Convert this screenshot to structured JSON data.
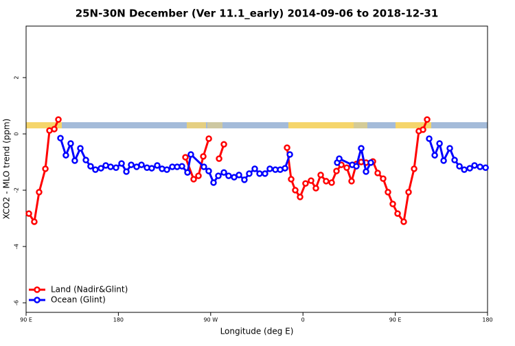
{
  "chart_data": {
    "type": "line",
    "title": "25N-30N December (Ver 11.1_early)   2014-09-06 to 2018-12-31",
    "xlabel": "Longitude (deg E)",
    "ylabel": "XCO2 - MLO trend (ppm)",
    "xlim": [
      90,
      540
    ],
    "ylim": [
      -6.34,
      3.83
    ],
    "xticks": [
      {
        "value": 90,
        "label": "90 E"
      },
      180,
      {
        "value": 270,
        "label": "90 W"
      },
      {
        "value": 360,
        "label": "0"
      },
      {
        "value": 450,
        "label": "90 E"
      },
      {
        "value": 540,
        "label": "180"
      }
    ],
    "yticks": [
      -6,
      -4,
      -2,
      0,
      2
    ],
    "legend": "bottom-left",
    "series": [
      {
        "name": "Land (Nadir&Glint)",
        "color": "#ff0000",
        "x": [
          92.7,
          98.0,
          102.7,
          108.8,
          112.8,
          117.5,
          121.5,
          null,
          245.4,
          253.4,
          258.1,
          262.8,
          268.2,
          null,
          278.2,
          282.9,
          null,
          344.5,
          348.5,
          352.5,
          357.2,
          362.5,
          367.9,
          372.6,
          377.3,
          382.6,
          388.0,
          392.7,
          397.4,
          402.7,
          407.4,
          412.1,
          416.8,
          421.5,
          428.2,
          432.9,
          438.2,
          442.9,
          447.6,
          452.3,
          458.3,
          463.0,
          468.4,
          473.0,
          477.1,
          481.1
        ],
        "values": [
          -2.83,
          -3.12,
          -2.07,
          -1.24,
          0.12,
          0.17,
          0.51,
          null,
          -0.83,
          -1.61,
          -1.49,
          -0.8,
          -0.17,
          null,
          -0.88,
          -0.37,
          null,
          -0.49,
          -1.61,
          -2.0,
          -2.24,
          -1.76,
          -1.66,
          -1.93,
          -1.46,
          -1.68,
          -1.73,
          -1.32,
          -1.1,
          -1.2,
          -1.68,
          -1.07,
          -1.0,
          -1.02,
          -0.98,
          -1.39,
          -1.59,
          -2.07,
          -2.49,
          -2.83,
          -3.12,
          -2.07,
          -1.24,
          0.1,
          0.15,
          0.51
        ]
      },
      {
        "name": "Ocean (Glint)",
        "color": "#0000ff",
        "x": [
          123.5,
          128.8,
          133.5,
          137.5,
          142.9,
          148.3,
          152.9,
          157.6,
          163.0,
          167.7,
          172.4,
          177.7,
          183.1,
          187.8,
          192.5,
          197.8,
          202.5,
          207.9,
          212.5,
          217.9,
          222.6,
          227.3,
          232.6,
          237.3,
          242.0,
          247.4,
          250.7,
          263.4,
          268.1,
          272.8,
          277.5,
          282.9,
          287.5,
          292.9,
          297.6,
          302.9,
          307.6,
          313.0,
          317.7,
          323.0,
          327.7,
          333.1,
          337.8,
          342.5,
          347.2,
          null,
          393.4,
          395.4,
          408.1,
          412.1,
          416.8,
          421.5,
          426.2,
          null,
          483.1,
          488.5,
          493.2,
          497.2,
          503.2,
          507.9,
          512.6,
          517.3,
          522.7,
          527.3,
          532.7,
          538.1
        ],
        "values": [
          -0.15,
          -0.76,
          -0.34,
          -0.95,
          -0.51,
          -0.93,
          -1.15,
          -1.27,
          -1.22,
          -1.12,
          -1.17,
          -1.2,
          -1.05,
          -1.34,
          -1.1,
          -1.17,
          -1.1,
          -1.2,
          -1.22,
          -1.12,
          -1.24,
          -1.27,
          -1.17,
          -1.17,
          -1.15,
          -1.37,
          -0.73,
          -1.17,
          -1.32,
          -1.73,
          -1.49,
          -1.37,
          -1.49,
          -1.54,
          -1.46,
          -1.63,
          -1.41,
          -1.24,
          -1.41,
          -1.41,
          -1.24,
          -1.27,
          -1.27,
          -1.22,
          -0.73,
          null,
          -1.02,
          -0.88,
          -1.1,
          -1.15,
          -0.51,
          -1.34,
          -1.02,
          null,
          -0.17,
          -0.76,
          -0.34,
          -0.95,
          -0.51,
          -0.93,
          -1.15,
          -1.27,
          -1.22,
          -1.12,
          -1.17,
          -1.2
        ]
      }
    ]
  }
}
